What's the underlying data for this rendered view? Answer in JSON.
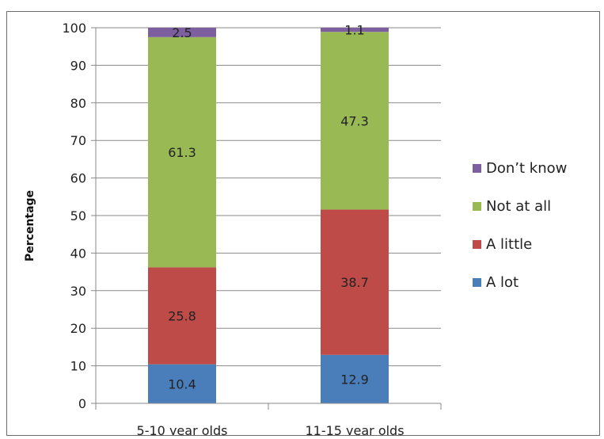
{
  "chart_data": {
    "type": "bar",
    "stacked": true,
    "categories": [
      "5-10 year olds",
      "11-15 year olds"
    ],
    "series": [
      {
        "name": "A lot",
        "values": [
          10.4,
          12.9
        ],
        "color": "#4a7ebb"
      },
      {
        "name": "A little",
        "values": [
          25.8,
          38.7
        ],
        "color": "#be4b48"
      },
      {
        "name": "Not at all",
        "values": [
          61.3,
          47.3
        ],
        "color": "#98b954"
      },
      {
        "name": "Don't know",
        "values": [
          2.5,
          1.1
        ],
        "color": "#7d5fa0"
      }
    ],
    "data_labels": [
      [
        "10.4",
        "12.9"
      ],
      [
        "25.8",
        "38.7"
      ],
      [
        "61.3",
        "47.3"
      ],
      [
        "2.5",
        "1.1"
      ]
    ],
    "legend_labels": [
      "Don’t know",
      "Not at all",
      "A little",
      "A lot"
    ],
    "ylabel": "Percentage",
    "xlabel": "",
    "title": "",
    "ylim": [
      0,
      100
    ],
    "yticks": [
      "0",
      "10",
      "20",
      "30",
      "40",
      "50",
      "60",
      "70",
      "80",
      "90",
      "100"
    ],
    "grid": true,
    "legend_position": "right"
  }
}
